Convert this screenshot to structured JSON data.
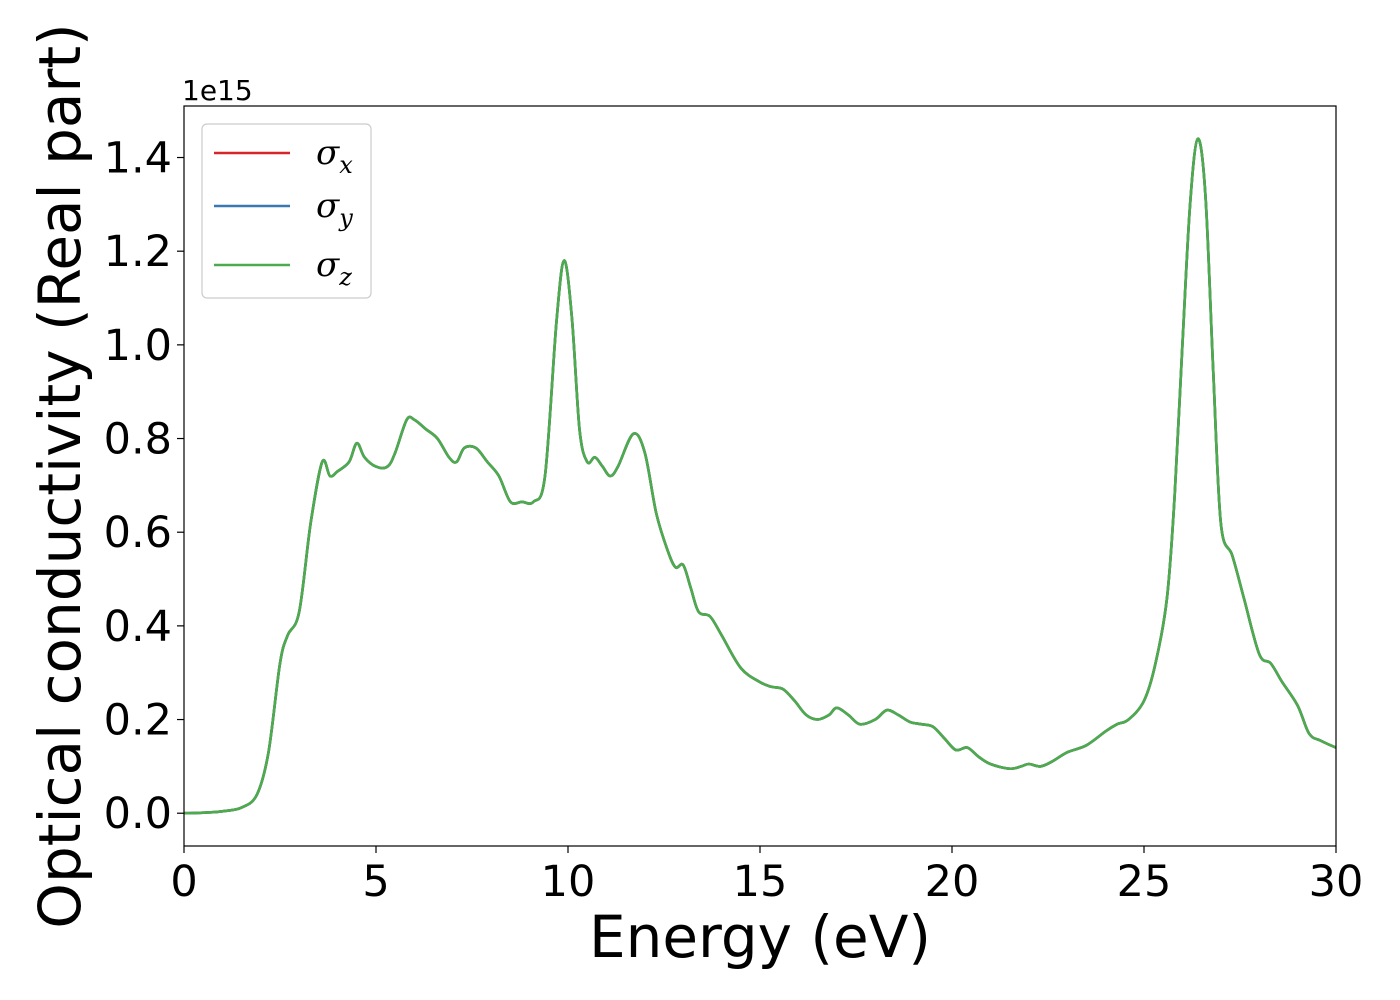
{
  "chart_data": {
    "type": "line",
    "xlabel": "Energy (eV)",
    "ylabel": "Optical conductivity (Real part)",
    "y_offset_label": "1e15",
    "xlim": [
      0,
      30
    ],
    "ylim": [
      -0.07,
      1.51
    ],
    "x_ticks": [
      0,
      5,
      10,
      15,
      20,
      25,
      30
    ],
    "x_tick_labels": [
      "0",
      "5",
      "10",
      "15",
      "20",
      "25",
      "30"
    ],
    "y_ticks": [
      0.0,
      0.2,
      0.4,
      0.6,
      0.8,
      1.0,
      1.2,
      1.4
    ],
    "y_tick_labels": [
      "0.0",
      "0.2",
      "0.4",
      "0.6",
      "0.8",
      "1.0",
      "1.2",
      "1.4"
    ],
    "grid": false,
    "legend_position": "top-left",
    "colors": {
      "x": "#d62728",
      "y": "#3a78b4",
      "z": "#4cab4c"
    },
    "x": [
      0,
      0.5,
      1.0,
      1.5,
      1.9,
      2.2,
      2.5,
      2.7,
      3.0,
      3.3,
      3.6,
      3.8,
      4.0,
      4.3,
      4.5,
      4.7,
      5.0,
      5.3,
      5.5,
      5.8,
      6.0,
      6.3,
      6.6,
      6.9,
      7.1,
      7.3,
      7.6,
      7.9,
      8.2,
      8.5,
      8.8,
      9.1,
      9.4,
      9.7,
      9.9,
      10.1,
      10.3,
      10.5,
      10.7,
      10.9,
      11.1,
      11.3,
      11.7,
      12.0,
      12.3,
      12.6,
      12.8,
      13.0,
      13.2,
      13.4,
      13.7,
      14.0,
      14.5,
      15.0,
      15.3,
      15.6,
      15.9,
      16.2,
      16.5,
      16.8,
      17.0,
      17.3,
      17.6,
      18.0,
      18.3,
      18.6,
      18.9,
      19.2,
      19.5,
      19.8,
      20.1,
      20.4,
      20.7,
      21.0,
      21.5,
      21.8,
      22.0,
      22.3,
      22.6,
      23.0,
      23.5,
      24.0,
      24.3,
      24.6,
      25.0,
      25.3,
      25.6,
      25.8,
      26.0,
      26.2,
      26.4,
      26.6,
      26.8,
      27.0,
      27.3,
      27.6,
      28.0,
      28.3,
      28.6,
      29.0,
      29.3,
      29.6,
      30.0
    ],
    "series": [
      {
        "name": "σx",
        "values": [
          0.0,
          0.001,
          0.004,
          0.012,
          0.04,
          0.13,
          0.32,
          0.38,
          0.43,
          0.62,
          0.75,
          0.72,
          0.73,
          0.75,
          0.79,
          0.76,
          0.74,
          0.74,
          0.77,
          0.84,
          0.84,
          0.82,
          0.8,
          0.76,
          0.75,
          0.78,
          0.78,
          0.75,
          0.72,
          0.665,
          0.665,
          0.665,
          0.72,
          1.05,
          1.18,
          1.06,
          0.82,
          0.75,
          0.76,
          0.74,
          0.72,
          0.74,
          0.81,
          0.77,
          0.64,
          0.56,
          0.525,
          0.53,
          0.48,
          0.43,
          0.42,
          0.38,
          0.31,
          0.28,
          0.27,
          0.265,
          0.24,
          0.21,
          0.2,
          0.21,
          0.225,
          0.21,
          0.19,
          0.2,
          0.22,
          0.21,
          0.195,
          0.19,
          0.185,
          0.16,
          0.135,
          0.14,
          0.12,
          0.105,
          0.095,
          0.1,
          0.105,
          0.1,
          0.11,
          0.13,
          0.145,
          0.175,
          0.19,
          0.2,
          0.24,
          0.32,
          0.46,
          0.68,
          1.0,
          1.3,
          1.44,
          1.32,
          0.95,
          0.62,
          0.55,
          0.46,
          0.34,
          0.32,
          0.28,
          0.23,
          0.17,
          0.155,
          0.14
        ]
      },
      {
        "name": "σy",
        "values": [
          0.0,
          0.001,
          0.004,
          0.012,
          0.04,
          0.13,
          0.32,
          0.38,
          0.43,
          0.62,
          0.75,
          0.72,
          0.73,
          0.75,
          0.79,
          0.76,
          0.74,
          0.74,
          0.77,
          0.84,
          0.84,
          0.82,
          0.8,
          0.76,
          0.75,
          0.78,
          0.78,
          0.75,
          0.72,
          0.665,
          0.665,
          0.665,
          0.72,
          1.05,
          1.18,
          1.06,
          0.82,
          0.75,
          0.76,
          0.74,
          0.72,
          0.74,
          0.81,
          0.77,
          0.64,
          0.56,
          0.525,
          0.53,
          0.48,
          0.43,
          0.42,
          0.38,
          0.31,
          0.28,
          0.27,
          0.265,
          0.24,
          0.21,
          0.2,
          0.21,
          0.225,
          0.21,
          0.19,
          0.2,
          0.22,
          0.21,
          0.195,
          0.19,
          0.185,
          0.16,
          0.135,
          0.14,
          0.12,
          0.105,
          0.095,
          0.1,
          0.105,
          0.1,
          0.11,
          0.13,
          0.145,
          0.175,
          0.19,
          0.2,
          0.24,
          0.32,
          0.46,
          0.68,
          1.0,
          1.3,
          1.44,
          1.32,
          0.95,
          0.62,
          0.55,
          0.46,
          0.34,
          0.32,
          0.28,
          0.23,
          0.17,
          0.155,
          0.14
        ]
      },
      {
        "name": "σz",
        "values": [
          0.0,
          0.001,
          0.004,
          0.012,
          0.04,
          0.13,
          0.32,
          0.38,
          0.43,
          0.62,
          0.75,
          0.72,
          0.73,
          0.75,
          0.79,
          0.76,
          0.74,
          0.74,
          0.77,
          0.84,
          0.84,
          0.82,
          0.8,
          0.76,
          0.75,
          0.78,
          0.78,
          0.75,
          0.72,
          0.665,
          0.665,
          0.665,
          0.72,
          1.05,
          1.18,
          1.06,
          0.82,
          0.75,
          0.76,
          0.74,
          0.72,
          0.74,
          0.81,
          0.77,
          0.64,
          0.56,
          0.525,
          0.53,
          0.48,
          0.43,
          0.42,
          0.38,
          0.31,
          0.28,
          0.27,
          0.265,
          0.24,
          0.21,
          0.2,
          0.21,
          0.225,
          0.21,
          0.19,
          0.2,
          0.22,
          0.21,
          0.195,
          0.19,
          0.185,
          0.16,
          0.135,
          0.14,
          0.12,
          0.105,
          0.095,
          0.1,
          0.105,
          0.1,
          0.11,
          0.13,
          0.145,
          0.175,
          0.19,
          0.2,
          0.24,
          0.32,
          0.46,
          0.68,
          1.0,
          1.3,
          1.44,
          1.32,
          0.95,
          0.62,
          0.55,
          0.46,
          0.34,
          0.32,
          0.28,
          0.23,
          0.17,
          0.155,
          0.14
        ]
      }
    ],
    "legend": [
      {
        "symbol": "σ",
        "sub": "x",
        "key": "x"
      },
      {
        "symbol": "σ",
        "sub": "y",
        "key": "y"
      },
      {
        "symbol": "σ",
        "sub": "z",
        "key": "z"
      }
    ]
  }
}
